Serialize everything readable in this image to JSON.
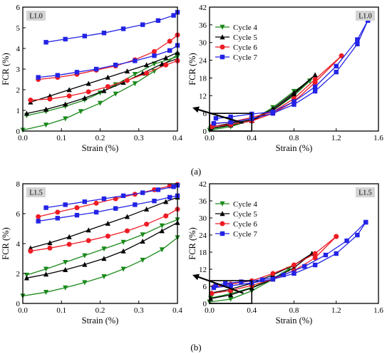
{
  "captions": {
    "top": "(a)",
    "bottom": "(b)"
  },
  "colors": {
    "cycle4": "#1a8a1a",
    "cycle5": "#000000",
    "cycle6": "#ee1c24",
    "cycle7": "#2323e6",
    "badge_bg": "#d4d4d4"
  },
  "chart_data": [
    {
      "id": "a_zoom",
      "type": "line",
      "badge": "L1.0",
      "xlabel": "Strain (%)",
      "ylabel": "FCR (%)",
      "xlim": [
        0,
        0.4
      ],
      "ylim": [
        0,
        6
      ],
      "xticks": [
        "0.0",
        "0.1",
        "0.2",
        "0.3",
        "0.4"
      ],
      "yticks": [
        "0",
        "1",
        "2",
        "3",
        "4",
        "5",
        "6"
      ],
      "grid": false,
      "legend": "none",
      "series": [
        {
          "key": "cycle4",
          "marker": "tri-down",
          "x": [
            0,
            0.06,
            0.11,
            0.15,
            0.2,
            0.24,
            0.29,
            0.34,
            0.4
          ],
          "y": [
            0.05,
            0.3,
            0.6,
            0.95,
            1.35,
            1.8,
            2.3,
            2.9,
            3.7
          ]
        },
        {
          "key": "cycle4",
          "marker": "tri-down",
          "x": [
            0.01,
            0.06,
            0.11,
            0.16,
            0.2,
            0.24,
            0.29,
            0.34,
            0.4
          ],
          "y": [
            0.75,
            0.95,
            1.2,
            1.5,
            1.85,
            2.25,
            2.75,
            3.25,
            3.6
          ]
        },
        {
          "key": "cycle5",
          "marker": "tri-up",
          "x": [
            0.01,
            0.06,
            0.11,
            0.16,
            0.21,
            0.26,
            0.31,
            0.36,
            0.4
          ],
          "y": [
            0.85,
            1.05,
            1.3,
            1.6,
            1.95,
            2.35,
            2.8,
            3.25,
            3.5
          ]
        },
        {
          "key": "cycle5",
          "marker": "tri-up",
          "x": [
            0.02,
            0.07,
            0.12,
            0.17,
            0.22,
            0.27,
            0.32,
            0.37,
            0.4
          ],
          "y": [
            1.4,
            1.7,
            2.0,
            2.3,
            2.6,
            2.9,
            3.2,
            3.55,
            3.8
          ]
        },
        {
          "key": "cycle6",
          "marker": "circle",
          "x": [
            0.02,
            0.07,
            0.12,
            0.17,
            0.22,
            0.27,
            0.32,
            0.37,
            0.4
          ],
          "y": [
            1.5,
            1.55,
            1.7,
            1.9,
            2.15,
            2.45,
            2.8,
            3.2,
            3.4
          ]
        },
        {
          "key": "cycle6",
          "marker": "circle",
          "x": [
            0.04,
            0.09,
            0.14,
            0.19,
            0.24,
            0.29,
            0.34,
            0.38,
            0.4
          ],
          "y": [
            2.5,
            2.6,
            2.75,
            2.95,
            3.15,
            3.45,
            3.85,
            4.35,
            4.65
          ]
        },
        {
          "key": "cycle7",
          "marker": "square",
          "x": [
            0.04,
            0.09,
            0.14,
            0.19,
            0.24,
            0.29,
            0.34,
            0.38,
            0.4
          ],
          "y": [
            2.6,
            2.7,
            2.85,
            3.0,
            3.2,
            3.4,
            3.65,
            3.9,
            4.15
          ]
        },
        {
          "key": "cycle7",
          "marker": "square",
          "x": [
            0.06,
            0.11,
            0.16,
            0.21,
            0.26,
            0.31,
            0.35,
            0.39,
            0.4
          ],
          "y": [
            4.3,
            4.45,
            4.6,
            4.75,
            4.95,
            5.15,
            5.35,
            5.6,
            5.75
          ]
        }
      ]
    },
    {
      "id": "a_full",
      "type": "line",
      "badge": "L1.0",
      "xlabel": "Strain (%)",
      "ylabel": "FCR (%)",
      "xlim": [
        0,
        1.6
      ],
      "ylim": [
        0,
        42
      ],
      "xticks": [
        "0.0",
        "0.4",
        "0.8",
        "1.2",
        "1.6"
      ],
      "yticks": [
        "0",
        "6",
        "12",
        "18",
        "24",
        "30",
        "36",
        "42"
      ],
      "grid": false,
      "legend": "top-left",
      "legend_entries": [
        {
          "key": "cycle4",
          "label": "Cycle 4",
          "marker": "tri-down"
        },
        {
          "key": "cycle5",
          "label": "Cycle 5",
          "marker": "tri-up"
        },
        {
          "key": "cycle6",
          "label": "Cycle 6",
          "marker": "circle"
        },
        {
          "key": "cycle7",
          "label": "Cycle 7",
          "marker": "square"
        }
      ],
      "zoom_box": {
        "x": [
          0,
          0.4
        ],
        "y": [
          0,
          6
        ]
      },
      "series": [
        {
          "key": "cycle4",
          "marker": "tri-down",
          "x": [
            0,
            0.2,
            0.4,
            0.6,
            0.8,
            0.95
          ],
          "y": [
            0.3,
            1.5,
            3.7,
            8.0,
            13.5,
            17.0
          ]
        },
        {
          "key": "cycle4",
          "marker": "tri-down",
          "x": [
            0.95,
            0.8,
            0.6,
            0.4,
            0.2,
            0.01
          ],
          "y": [
            17.0,
            12.0,
            7.0,
            3.6,
            1.9,
            0.8
          ]
        },
        {
          "key": "cycle5",
          "marker": "tri-up",
          "x": [
            0.01,
            0.2,
            0.4,
            0.6,
            0.8,
            1.0
          ],
          "y": [
            0.9,
            2.0,
            3.5,
            7.0,
            12.5,
            19.0
          ]
        },
        {
          "key": "cycle5",
          "marker": "tri-up",
          "x": [
            1.0,
            0.8,
            0.6,
            0.4,
            0.2,
            0.02
          ],
          "y": [
            19.0,
            13.0,
            7.5,
            3.8,
            2.6,
            1.4
          ]
        },
        {
          "key": "cycle6",
          "marker": "circle",
          "x": [
            0.02,
            0.2,
            0.4,
            0.6,
            0.8,
            1.0,
            1.25
          ],
          "y": [
            1.5,
            2.2,
            3.4,
            6.0,
            10.0,
            16.5,
            25.5
          ]
        },
        {
          "key": "cycle6",
          "marker": "circle",
          "x": [
            1.25,
            1.0,
            0.8,
            0.6,
            0.4,
            0.2,
            0.04
          ],
          "y": [
            25.5,
            17.5,
            11.0,
            6.5,
            4.6,
            3.0,
            2.5
          ]
        },
        {
          "key": "cycle7",
          "marker": "square",
          "x": [
            0.04,
            0.2,
            0.4,
            0.6,
            0.8,
            1.0,
            1.2,
            1.4,
            1.5
          ],
          "y": [
            2.6,
            3.0,
            4.2,
            6.0,
            9.0,
            13.5,
            20.0,
            29.5,
            37.5
          ]
        },
        {
          "key": "cycle7",
          "marker": "square",
          "x": [
            1.5,
            1.4,
            1.2,
            1.0,
            0.8,
            0.6,
            0.4,
            0.2,
            0.06
          ],
          "y": [
            37.5,
            31.0,
            22.0,
            15.0,
            10.0,
            6.5,
            5.8,
            4.8,
            4.3
          ]
        }
      ]
    },
    {
      "id": "b_zoom",
      "type": "line",
      "badge": "L1.5",
      "xlabel": "Strain (%)",
      "ylabel": "FCR (%)",
      "xlim": [
        0,
        0.4
      ],
      "ylim": [
        0,
        8
      ],
      "xticks": [
        "0.0",
        "0.1",
        "0.2",
        "0.3",
        "0.4"
      ],
      "yticks": [
        "0",
        "2",
        "4",
        "6",
        "8"
      ],
      "grid": false,
      "legend": "none",
      "series": [
        {
          "key": "cycle4",
          "marker": "tri-down",
          "x": [
            0,
            0.06,
            0.11,
            0.16,
            0.21,
            0.26,
            0.31,
            0.36,
            0.4
          ],
          "y": [
            0.5,
            0.75,
            1.05,
            1.4,
            1.8,
            2.3,
            2.9,
            3.6,
            4.4
          ]
        },
        {
          "key": "cycle4",
          "marker": "tri-down",
          "x": [
            0.01,
            0.06,
            0.11,
            0.16,
            0.21,
            0.26,
            0.31,
            0.36,
            0.4
          ],
          "y": [
            1.9,
            2.3,
            2.75,
            3.2,
            3.65,
            4.1,
            4.6,
            5.2,
            5.6
          ]
        },
        {
          "key": "cycle5",
          "marker": "tri-up",
          "x": [
            0.01,
            0.06,
            0.11,
            0.16,
            0.21,
            0.26,
            0.31,
            0.36,
            0.4
          ],
          "y": [
            1.7,
            1.95,
            2.25,
            2.6,
            3.0,
            3.5,
            4.15,
            4.85,
            5.4
          ]
        },
        {
          "key": "cycle5",
          "marker": "tri-up",
          "x": [
            0.02,
            0.07,
            0.12,
            0.17,
            0.22,
            0.27,
            0.32,
            0.37,
            0.4
          ],
          "y": [
            3.7,
            4.05,
            4.45,
            4.9,
            5.35,
            5.8,
            6.3,
            6.8,
            7.1
          ]
        },
        {
          "key": "cycle6",
          "marker": "circle",
          "x": [
            0.02,
            0.07,
            0.12,
            0.17,
            0.22,
            0.27,
            0.32,
            0.37,
            0.4
          ],
          "y": [
            3.5,
            3.7,
            3.95,
            4.2,
            4.5,
            4.85,
            5.3,
            5.85,
            6.3
          ]
        },
        {
          "key": "cycle6",
          "marker": "circle",
          "x": [
            0.04,
            0.09,
            0.14,
            0.19,
            0.24,
            0.29,
            0.34,
            0.38,
            0.4
          ],
          "y": [
            5.8,
            6.1,
            6.4,
            6.7,
            7.0,
            7.3,
            7.6,
            7.85,
            7.95
          ]
        },
        {
          "key": "cycle7",
          "marker": "square",
          "x": [
            0.04,
            0.09,
            0.14,
            0.19,
            0.24,
            0.29,
            0.34,
            0.38,
            0.4
          ],
          "y": [
            5.5,
            5.7,
            5.9,
            6.1,
            6.35,
            6.6,
            6.85,
            7.1,
            7.2
          ]
        },
        {
          "key": "cycle7",
          "marker": "square",
          "x": [
            0.06,
            0.11,
            0.16,
            0.21,
            0.26,
            0.31,
            0.35,
            0.39,
            0.4
          ],
          "y": [
            6.4,
            6.6,
            6.8,
            7.0,
            7.2,
            7.4,
            7.6,
            7.8,
            7.9
          ]
        }
      ]
    },
    {
      "id": "b_full",
      "type": "line",
      "badge": "L1.5",
      "xlabel": "Strain (%)",
      "ylabel": "FCR (%)",
      "xlim": [
        0,
        1.6
      ],
      "ylim": [
        0,
        42
      ],
      "xticks": [
        "0.0",
        "0.4",
        "0.8",
        "1.2",
        "1.6"
      ],
      "yticks": [
        "0",
        "6",
        "12",
        "18",
        "24",
        "30",
        "36",
        "42"
      ],
      "grid": false,
      "legend": "top-left",
      "legend_entries": [
        {
          "key": "cycle4",
          "label": "Cycle 4",
          "marker": "tri-down"
        },
        {
          "key": "cycle5",
          "label": "Cycle 5",
          "marker": "tri-up"
        },
        {
          "key": "cycle6",
          "label": "Cycle 6",
          "marker": "circle"
        },
        {
          "key": "cycle7",
          "label": "Cycle 7",
          "marker": "square"
        }
      ],
      "zoom_box": {
        "x": [
          0,
          0.4
        ],
        "y": [
          0,
          8
        ]
      },
      "series": [
        {
          "key": "cycle4",
          "marker": "tri-down",
          "x": [
            0,
            0.2,
            0.4,
            0.6,
            0.75
          ],
          "y": [
            0.5,
            1.5,
            4.4,
            8.5,
            12.0
          ]
        },
        {
          "key": "cycle4",
          "marker": "tri-down",
          "x": [
            0.75,
            0.6,
            0.4,
            0.2,
            0.01
          ],
          "y": [
            12.0,
            8.8,
            5.6,
            3.4,
            1.9
          ]
        },
        {
          "key": "cycle5",
          "marker": "tri-up",
          "x": [
            0.01,
            0.2,
            0.4,
            0.6,
            0.8,
            0.97
          ],
          "y": [
            1.7,
            3.0,
            5.4,
            8.5,
            12.5,
            17.5
          ]
        },
        {
          "key": "cycle5",
          "marker": "tri-up",
          "x": [
            0.97,
            0.8,
            0.6,
            0.4,
            0.2,
            0.02
          ],
          "y": [
            17.5,
            13.5,
            10.0,
            7.1,
            5.0,
            3.7
          ]
        },
        {
          "key": "cycle6",
          "marker": "circle",
          "x": [
            0.02,
            0.2,
            0.4,
            0.6,
            0.8,
            1.0,
            1.2
          ],
          "y": [
            3.5,
            4.5,
            6.3,
            8.5,
            11.5,
            16.0,
            23.5
          ]
        },
        {
          "key": "cycle6",
          "marker": "circle",
          "x": [
            1.2,
            1.0,
            0.8,
            0.6,
            0.4,
            0.2,
            0.04
          ],
          "y": [
            23.5,
            17.5,
            13.5,
            10.5,
            7.95,
            6.8,
            5.8
          ]
        },
        {
          "key": "cycle7",
          "marker": "square",
          "x": [
            0.04,
            0.2,
            0.4,
            0.6,
            0.8,
            1.0,
            1.2,
            1.4,
            1.48
          ],
          "y": [
            5.5,
            6.2,
            7.2,
            8.5,
            10.5,
            13.5,
            17.5,
            24.0,
            28.5
          ]
        },
        {
          "key": "cycle7",
          "marker": "square",
          "x": [
            1.48,
            1.3,
            1.1,
            0.9,
            0.7,
            0.5,
            0.3,
            0.15,
            0.06
          ],
          "y": [
            28.5,
            22.0,
            17.0,
            13.0,
            10.0,
            8.3,
            7.6,
            7.0,
            6.4
          ]
        }
      ]
    }
  ]
}
